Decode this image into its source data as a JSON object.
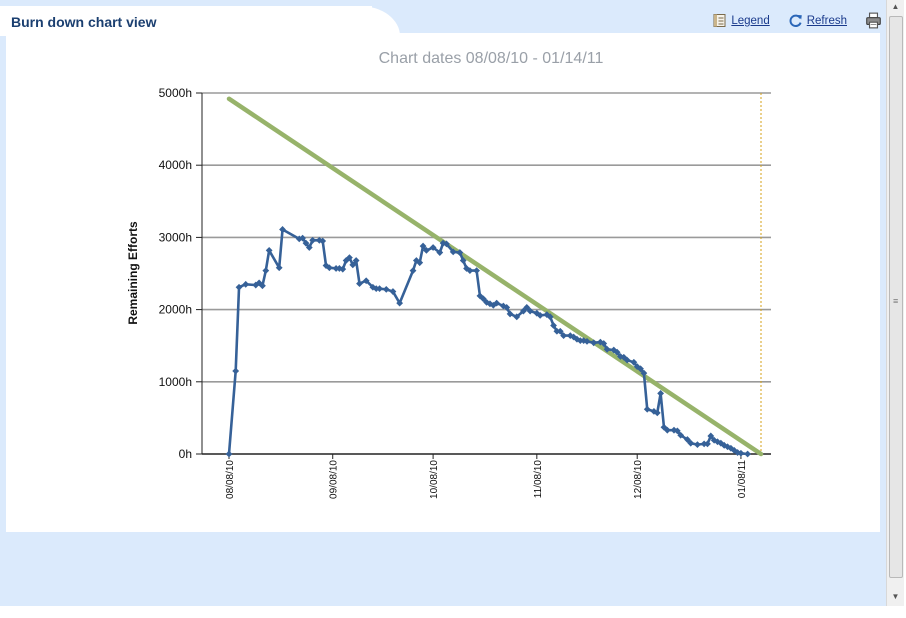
{
  "header": {
    "title": "Burn down chart view"
  },
  "toolbar": {
    "legend_label": "Legend",
    "refresh_label": "Refresh"
  },
  "icons": {
    "legend": "legend-icon",
    "refresh": "refresh-icon",
    "print": "printer-icon"
  },
  "colors": {
    "actual": "#366198",
    "ideal": "#97b36a",
    "grid": "#9a9a9a",
    "today_marker": "#d4a017",
    "title_text": "#1b3f70",
    "link": "#1a3a8c"
  },
  "chart_data": {
    "type": "line",
    "title": "Chart dates 08/08/10 - 01/14/11",
    "ylabel": "Remaining Efforts",
    "xlabel": "",
    "x_range": [
      "2010-08-08",
      "2011-01-14"
    ],
    "ylim": [
      0,
      5000
    ],
    "y_ticks": [
      0,
      1000,
      2000,
      3000,
      4000,
      5000
    ],
    "y_tick_labels": [
      "0h",
      "1000h",
      "2000h",
      "3000h",
      "4000h",
      "5000h"
    ],
    "x_ticks": [
      "2010-08-08",
      "2010-09-08",
      "2010-10-08",
      "2010-11-08",
      "2010-12-08",
      "2011-01-08"
    ],
    "x_tick_labels": [
      "08/08/10",
      "09/08/10",
      "10/08/10",
      "11/08/10",
      "12/08/10",
      "01/08/11"
    ],
    "grid": "horizontal",
    "today_marker": "2011-01-14",
    "series": [
      {
        "kind": "ideal",
        "points": [
          [
            "2010-08-08",
            4920
          ],
          [
            "2011-01-14",
            0
          ]
        ]
      },
      {
        "kind": "actual",
        "points": [
          [
            "2010-08-08",
            0
          ],
          [
            "2010-08-10",
            1150
          ],
          [
            "2010-08-11",
            2310
          ],
          [
            "2010-08-13",
            2350
          ],
          [
            "2010-08-16",
            2340
          ],
          [
            "2010-08-17",
            2370
          ],
          [
            "2010-08-18",
            2330
          ],
          [
            "2010-08-19",
            2540
          ],
          [
            "2010-08-20",
            2820
          ],
          [
            "2010-08-23",
            2580
          ],
          [
            "2010-08-24",
            3110
          ],
          [
            "2010-08-29",
            2980
          ],
          [
            "2010-08-30",
            2990
          ],
          [
            "2010-08-31",
            2920
          ],
          [
            "2010-09-01",
            2860
          ],
          [
            "2010-09-02",
            2960
          ],
          [
            "2010-09-04",
            2960
          ],
          [
            "2010-09-05",
            2950
          ],
          [
            "2010-09-06",
            2610
          ],
          [
            "2010-09-07",
            2580
          ],
          [
            "2010-09-09",
            2570
          ],
          [
            "2010-09-10",
            2570
          ],
          [
            "2010-09-11",
            2560
          ],
          [
            "2010-09-12",
            2680
          ],
          [
            "2010-09-13",
            2720
          ],
          [
            "2010-09-14",
            2620
          ],
          [
            "2010-09-15",
            2680
          ],
          [
            "2010-09-16",
            2360
          ],
          [
            "2010-09-18",
            2400
          ],
          [
            "2010-09-20",
            2310
          ],
          [
            "2010-09-21",
            2290
          ],
          [
            "2010-09-22",
            2290
          ],
          [
            "2010-09-24",
            2280
          ],
          [
            "2010-09-26",
            2250
          ],
          [
            "2010-09-28",
            2090
          ],
          [
            "2010-10-02",
            2540
          ],
          [
            "2010-10-03",
            2680
          ],
          [
            "2010-10-04",
            2650
          ],
          [
            "2010-10-05",
            2880
          ],
          [
            "2010-10-06",
            2820
          ],
          [
            "2010-10-08",
            2860
          ],
          [
            "2010-10-10",
            2790
          ],
          [
            "2010-10-11",
            2920
          ],
          [
            "2010-10-12",
            2910
          ],
          [
            "2010-10-14",
            2800
          ],
          [
            "2010-10-16",
            2790
          ],
          [
            "2010-10-17",
            2680
          ],
          [
            "2010-10-18",
            2570
          ],
          [
            "2010-10-19",
            2540
          ],
          [
            "2010-10-21",
            2540
          ],
          [
            "2010-10-22",
            2190
          ],
          [
            "2010-10-23",
            2150
          ],
          [
            "2010-10-24",
            2100
          ],
          [
            "2010-10-25",
            2080
          ],
          [
            "2010-10-26",
            2060
          ],
          [
            "2010-10-27",
            2090
          ],
          [
            "2010-10-29",
            2050
          ],
          [
            "2010-10-30",
            2030
          ],
          [
            "2010-10-31",
            1940
          ],
          [
            "2010-11-02",
            1900
          ],
          [
            "2010-11-04",
            1980
          ],
          [
            "2010-11-05",
            2030
          ],
          [
            "2010-11-06",
            1980
          ],
          [
            "2010-11-08",
            1950
          ],
          [
            "2010-11-09",
            1920
          ],
          [
            "2010-11-11",
            1930
          ],
          [
            "2010-11-12",
            1900
          ],
          [
            "2010-11-13",
            1780
          ],
          [
            "2010-11-14",
            1700
          ],
          [
            "2010-11-15",
            1700
          ],
          [
            "2010-11-16",
            1640
          ],
          [
            "2010-11-18",
            1640
          ],
          [
            "2010-11-19",
            1620
          ],
          [
            "2010-11-20",
            1590
          ],
          [
            "2010-11-21",
            1570
          ],
          [
            "2010-11-22",
            1570
          ],
          [
            "2010-11-23",
            1560
          ],
          [
            "2010-11-25",
            1540
          ],
          [
            "2010-11-27",
            1550
          ],
          [
            "2010-11-28",
            1530
          ],
          [
            "2010-11-29",
            1450
          ],
          [
            "2010-12-01",
            1440
          ],
          [
            "2010-12-02",
            1410
          ],
          [
            "2010-12-03",
            1350
          ],
          [
            "2010-12-04",
            1340
          ],
          [
            "2010-12-05",
            1300
          ],
          [
            "2010-12-07",
            1270
          ],
          [
            "2010-12-08",
            1210
          ],
          [
            "2010-12-09",
            1180
          ],
          [
            "2010-12-10",
            1120
          ],
          [
            "2010-12-11",
            620
          ],
          [
            "2010-12-13",
            590
          ],
          [
            "2010-12-14",
            570
          ],
          [
            "2010-12-15",
            840
          ],
          [
            "2010-12-16",
            370
          ],
          [
            "2010-12-17",
            330
          ],
          [
            "2010-12-19",
            330
          ],
          [
            "2010-12-20",
            320
          ],
          [
            "2010-12-21",
            260
          ],
          [
            "2010-12-23",
            200
          ],
          [
            "2010-12-24",
            150
          ],
          [
            "2010-12-26",
            130
          ],
          [
            "2010-12-28",
            140
          ],
          [
            "2010-12-29",
            140
          ],
          [
            "2010-12-30",
            250
          ],
          [
            "2010-12-31",
            190
          ],
          [
            "2011-01-01",
            170
          ],
          [
            "2011-01-02",
            150
          ],
          [
            "2011-01-03",
            120
          ],
          [
            "2011-01-04",
            100
          ],
          [
            "2011-01-05",
            80
          ],
          [
            "2011-01-06",
            50
          ],
          [
            "2011-01-07",
            20
          ],
          [
            "2011-01-08",
            10
          ],
          [
            "2011-01-10",
            0
          ]
        ]
      }
    ]
  }
}
